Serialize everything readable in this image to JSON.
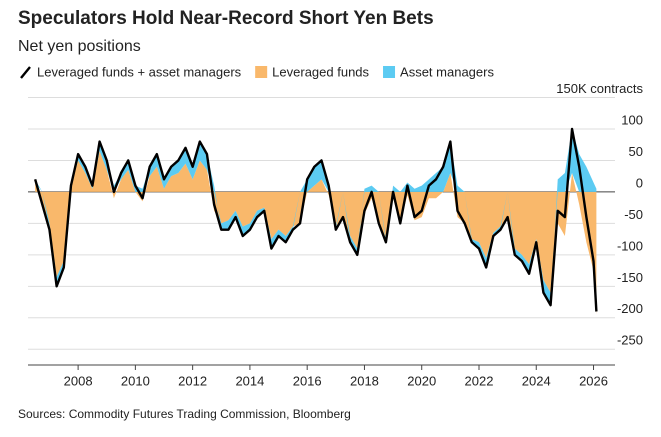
{
  "chart_data": {
    "type": "stacked_area_line",
    "title": "Speculators Hold Near-Record Short Yen Bets",
    "subtitle": "Net yen positions",
    "source": "Sources: Commodity Futures Trading Commission, Bloomberg",
    "x": [
      2006.5,
      2006.75,
      2007,
      2007.25,
      2007.5,
      2007.75,
      2008,
      2008.25,
      2008.5,
      2008.75,
      2009,
      2009.25,
      2009.5,
      2009.75,
      2010,
      2010.25,
      2010.5,
      2010.75,
      2011,
      2011.25,
      2011.5,
      2011.75,
      2012,
      2012.25,
      2012.5,
      2012.75,
      2013,
      2013.25,
      2013.5,
      2013.75,
      2014,
      2014.25,
      2014.5,
      2014.75,
      2015,
      2015.25,
      2015.5,
      2015.75,
      2016,
      2016.25,
      2016.5,
      2016.75,
      2017,
      2017.25,
      2017.5,
      2017.75,
      2018,
      2018.25,
      2018.5,
      2018.75,
      2019,
      2019.25,
      2019.5,
      2019.75,
      2020,
      2020.25,
      2020.5,
      2020.75,
      2021,
      2021.25,
      2021.5,
      2021.75,
      2022,
      2022.25,
      2022.5,
      2022.75,
      2023,
      2023.25,
      2023.5,
      2023.75,
      2024,
      2024.25,
      2024.5,
      2024.75,
      2025,
      2025.25,
      2025.5,
      2025.75,
      2026,
      2026.1
    ],
    "series": [
      {
        "name": "Leveraged funds",
        "color": "#f9b86b",
        "stack": true,
        "values": [
          15,
          -20,
          -50,
          -135,
          -110,
          10,
          50,
          30,
          5,
          65,
          35,
          -10,
          20,
          35,
          0,
          -15,
          25,
          40,
          5,
          25,
          30,
          45,
          20,
          50,
          35,
          -30,
          -50,
          -45,
          -30,
          -55,
          -50,
          -30,
          -25,
          -75,
          -60,
          -70,
          -55,
          -50,
          0,
          10,
          20,
          -5,
          -55,
          -40,
          -70,
          -90,
          -35,
          -10,
          -50,
          -75,
          -10,
          -50,
          -5,
          -45,
          -40,
          -10,
          -10,
          0,
          30,
          -40,
          -50,
          -75,
          -80,
          -105,
          -65,
          -55,
          -40,
          -90,
          -100,
          -115,
          -75,
          -140,
          -160,
          -50,
          -70,
          30,
          -20,
          -80,
          -125,
          -195
        ]
      },
      {
        "name": "Asset managers",
        "color": "#5ccbf2",
        "stack": true,
        "values": [
          5,
          0,
          -10,
          -15,
          -10,
          0,
          10,
          10,
          5,
          15,
          15,
          10,
          10,
          15,
          10,
          5,
          15,
          20,
          15,
          15,
          20,
          25,
          20,
          30,
          25,
          10,
          -10,
          -15,
          -10,
          -15,
          -10,
          -10,
          -5,
          -15,
          -10,
          -10,
          -5,
          0,
          20,
          30,
          30,
          15,
          -5,
          0,
          -10,
          -10,
          5,
          10,
          0,
          -5,
          10,
          0,
          15,
          5,
          10,
          20,
          30,
          40,
          50,
          10,
          0,
          -5,
          -10,
          -15,
          -5,
          -5,
          0,
          -10,
          -10,
          -15,
          -5,
          -20,
          -20,
          20,
          30,
          70,
          60,
          40,
          15,
          5
        ]
      },
      {
        "name": "Leveraged funds + asset managers",
        "color": "#000000",
        "stack": false,
        "values": [
          20,
          -20,
          -60,
          -150,
          -120,
          10,
          60,
          40,
          10,
          80,
          50,
          0,
          30,
          50,
          10,
          -10,
          40,
          60,
          20,
          40,
          50,
          70,
          40,
          80,
          60,
          -20,
          -60,
          -60,
          -40,
          -70,
          -60,
          -40,
          -30,
          -90,
          -70,
          -80,
          -60,
          -50,
          20,
          40,
          50,
          10,
          -60,
          -40,
          -80,
          -100,
          -30,
          0,
          -50,
          -80,
          0,
          -50,
          10,
          -40,
          -30,
          10,
          20,
          40,
          80,
          -30,
          -50,
          -80,
          -90,
          -120,
          -70,
          -60,
          -40,
          -100,
          -110,
          -130,
          -80,
          -160,
          -180,
          -30,
          -40,
          100,
          40,
          -40,
          -110,
          -190
        ]
      }
    ],
    "legend_order": [
      2,
      0,
      1
    ],
    "xlim": [
      2006.25,
      2026.75
    ],
    "xticks": [
      2008,
      2010,
      2012,
      2014,
      2016,
      2018,
      2020,
      2022,
      2024,
      2026
    ],
    "ylim": [
      -275,
      150
    ],
    "yticks": [
      {
        "value": 150,
        "label": "150K contracts"
      },
      100,
      50,
      0,
      -50,
      -100,
      -150,
      -200,
      -250
    ],
    "grid": true
  }
}
